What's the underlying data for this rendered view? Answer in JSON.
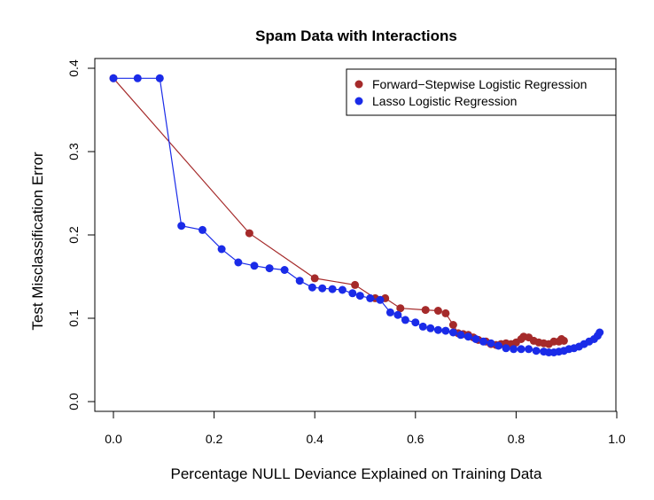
{
  "chart_data": {
    "type": "scatter",
    "title": "Spam Data with Interactions",
    "xlabel": "Percentage NULL Deviance Explained on Training Data",
    "ylabel": "Test Misclassification Error",
    "xlim": [
      0,
      1
    ],
    "ylim": [
      0,
      0.4
    ],
    "xticks": [
      "0.0",
      "0.2",
      "0.4",
      "0.6",
      "0.8",
      "1.0"
    ],
    "yticks": [
      "0.0",
      "0.1",
      "0.2",
      "0.3",
      "0.4"
    ],
    "grid": false,
    "legend_position": "top-right",
    "series": [
      {
        "name": "Forward−Stepwise Logistic Regression",
        "color": "#A52A2A",
        "line": "solid",
        "x": [
          0.0,
          0.27,
          0.4,
          0.48,
          0.52,
          0.54,
          0.57,
          0.62,
          0.645,
          0.66,
          0.675,
          0.685,
          0.695,
          0.705,
          0.715,
          0.725,
          0.74,
          0.75,
          0.76,
          0.77,
          0.78,
          0.79,
          0.8,
          0.81,
          0.815,
          0.825,
          0.835,
          0.845,
          0.855,
          0.865,
          0.875,
          0.885,
          0.89,
          0.895
        ],
        "y": [
          0.388,
          0.202,
          0.148,
          0.14,
          0.124,
          0.124,
          0.112,
          0.11,
          0.109,
          0.106,
          0.092,
          0.082,
          0.081,
          0.08,
          0.077,
          0.074,
          0.072,
          0.069,
          0.068,
          0.069,
          0.07,
          0.069,
          0.071,
          0.075,
          0.078,
          0.077,
          0.073,
          0.071,
          0.07,
          0.069,
          0.072,
          0.072,
          0.075,
          0.073
        ]
      },
      {
        "name": "Lasso Logistic Regression",
        "color": "#1A2BE8",
        "line": "solid",
        "x": [
          0.0,
          0.048,
          0.092,
          0.135,
          0.177,
          0.215,
          0.248,
          0.28,
          0.31,
          0.34,
          0.37,
          0.395,
          0.415,
          0.435,
          0.455,
          0.475,
          0.49,
          0.51,
          0.53,
          0.55,
          0.565,
          0.58,
          0.6,
          0.615,
          0.63,
          0.645,
          0.66,
          0.675,
          0.69,
          0.705,
          0.72,
          0.735,
          0.75,
          0.765,
          0.78,
          0.795,
          0.81,
          0.825,
          0.84,
          0.855,
          0.865,
          0.875,
          0.885,
          0.895,
          0.905,
          0.915,
          0.925,
          0.935,
          0.945,
          0.955,
          0.962,
          0.966
        ],
        "y": [
          0.388,
          0.388,
          0.388,
          0.211,
          0.206,
          0.183,
          0.167,
          0.163,
          0.16,
          0.158,
          0.145,
          0.137,
          0.136,
          0.135,
          0.134,
          0.13,
          0.127,
          0.124,
          0.122,
          0.107,
          0.104,
          0.098,
          0.095,
          0.09,
          0.088,
          0.086,
          0.085,
          0.083,
          0.08,
          0.078,
          0.075,
          0.072,
          0.07,
          0.067,
          0.064,
          0.063,
          0.063,
          0.063,
          0.061,
          0.06,
          0.059,
          0.059,
          0.06,
          0.061,
          0.063,
          0.064,
          0.066,
          0.069,
          0.072,
          0.075,
          0.079,
          0.083
        ]
      }
    ]
  }
}
